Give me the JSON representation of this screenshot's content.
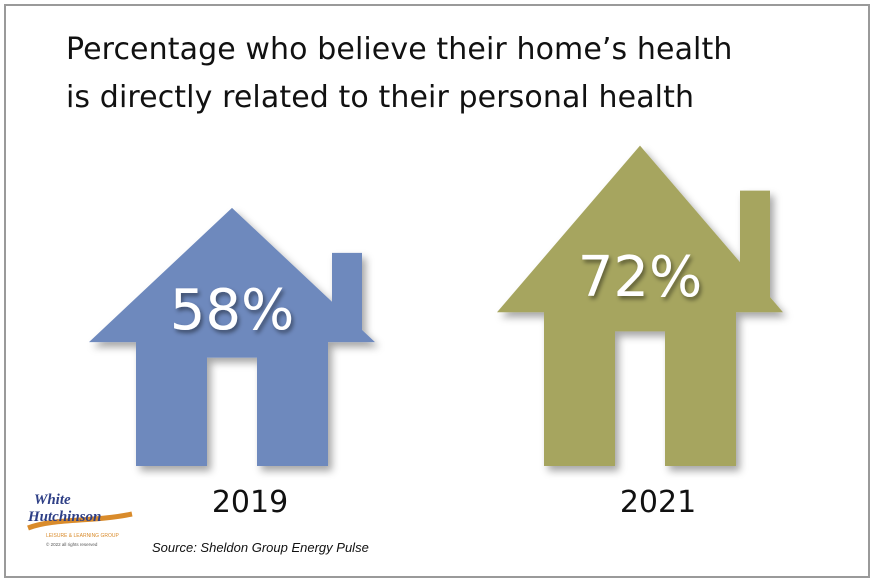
{
  "chart_data": {
    "type": "bar",
    "title": "Percentage who believe their home’s health is directly related to their personal health",
    "title_lines": [
      "Percentage who believe their home’s health",
      "is directly related to their personal health"
    ],
    "categories": [
      "2019",
      "2021"
    ],
    "values": [
      58,
      72
    ],
    "value_labels": [
      "58%",
      "72%"
    ],
    "unit": "%",
    "ylim": [
      0,
      100
    ],
    "grid": false,
    "colors": [
      "#6e89bd",
      "#a6a55f"
    ]
  },
  "source": "Source: Sheldon Group Energy Pulse",
  "logo": {
    "line1": "White",
    "line2": "Hutchinson",
    "tagline": "LEISURE & LEARNING GROUP",
    "copyright": "© 2022 all rights reserved",
    "accent": "#d98b2b",
    "brand": "#2e3f86"
  }
}
